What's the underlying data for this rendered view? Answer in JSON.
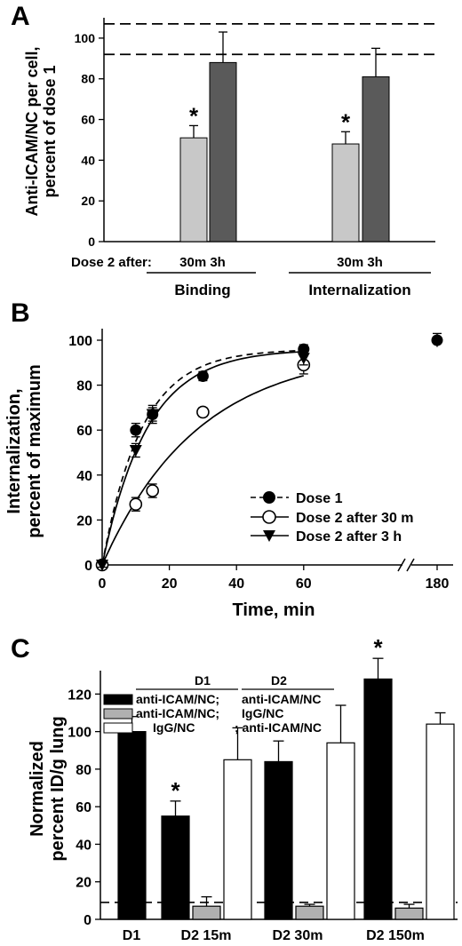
{
  "panels": {
    "A": {
      "label": "A",
      "ylabel_line1": "Anti-ICAM/NC per cell,",
      "ylabel_line2": "percent of dose 1",
      "dose_prefix": "Dose 2 after:",
      "group_ticks": [
        "30m 3h",
        "30m 3h"
      ],
      "groups": [
        "Binding",
        "Internalization"
      ],
      "star": "*"
    },
    "B": {
      "label": "B",
      "ylabel_line1": "Internalization,",
      "ylabel_line2": "percent of maximum",
      "xlabel": "Time, min",
      "legend": [
        "Dose 1",
        "Dose 2 after 30 m",
        "Dose 2 after 3 h"
      ]
    },
    "C": {
      "label": "C",
      "ylabel_line1": "Normalized",
      "ylabel_line2": "percent ID/g lung",
      "legend_head": [
        "D1",
        "D2"
      ],
      "legend_rows": [
        {
          "d1": "anti-ICAM/NC;",
          "d2": "anti-ICAM/NC"
        },
        {
          "d1": "anti-ICAM/NC;",
          "d2": "IgG/NC"
        },
        {
          "d1": "IgG/NC",
          "d2": "; anti-ICAM/NC"
        }
      ],
      "star": "*"
    }
  },
  "chart_data": [
    {
      "type": "bar",
      "panel": "A",
      "ylim": [
        0,
        110
      ],
      "yticks": [
        0,
        20,
        40,
        60,
        80,
        100
      ],
      "reference_lines": [
        107,
        92
      ],
      "groups": [
        "Binding",
        "Internalization"
      ],
      "categories": [
        "30m",
        "3h"
      ],
      "series": [
        {
          "group": "Binding",
          "values": [
            51,
            88
          ],
          "errors": [
            6,
            15
          ],
          "colors": [
            "#c8c8c8",
            "#5a5a5a"
          ]
        },
        {
          "group": "Internalization",
          "values": [
            48,
            81
          ],
          "errors": [
            6,
            14
          ],
          "colors": [
            "#c8c8c8",
            "#5a5a5a"
          ]
        }
      ],
      "significant": [
        [
          true,
          false
        ],
        [
          true,
          false
        ]
      ]
    },
    {
      "type": "scatter",
      "panel": "B",
      "xticks": [
        "0",
        "20",
        "40",
        "60",
        "180"
      ],
      "yticks": [
        0,
        20,
        40,
        60,
        80,
        100
      ],
      "xlim": [
        0,
        70
      ],
      "ylim": [
        0,
        105
      ],
      "axis_break_after": 65,
      "series": [
        {
          "name": "Dose 1",
          "marker": "filled-circle",
          "line": "dashed",
          "points": [
            [
              0,
              0
            ],
            [
              10,
              60
            ],
            [
              15,
              67
            ],
            [
              30,
              84
            ],
            [
              60,
              96
            ]
          ],
          "errors": [
            1,
            3,
            3,
            2,
            2
          ],
          "fit": {
            "ymax": 96,
            "k": 0.085
          }
        },
        {
          "name": "Dose 2 after 30 m",
          "marker": "open-circle",
          "line": "solid",
          "points": [
            [
              0,
              0
            ],
            [
              10,
              27
            ],
            [
              15,
              33
            ],
            [
              30,
              68
            ],
            [
              60,
              89
            ]
          ],
          "errors": [
            1,
            3,
            3,
            2,
            4
          ],
          "fit": {
            "ymax": 96,
            "k": 0.035
          }
        },
        {
          "name": "Dose 2 after 3 h",
          "marker": "filled-triangle",
          "line": "solid",
          "points": [
            [
              0,
              0
            ],
            [
              10,
              51
            ],
            [
              15,
              67
            ],
            [
              60,
              92
            ]
          ],
          "errors": [
            1,
            3,
            4,
            3
          ],
          "fit": {
            "ymax": 96,
            "k": 0.075
          }
        }
      ],
      "extra_points": [
        {
          "x_label": "180",
          "y": 100,
          "error": 3
        }
      ]
    },
    {
      "type": "bar",
      "panel": "C",
      "ylim": [
        0,
        145
      ],
      "yticks": [
        0,
        20,
        40,
        60,
        80,
        100,
        120
      ],
      "reference_line": 9,
      "categories": [
        "D1",
        "D2 15m",
        "D2 30m",
        "D2 150m"
      ],
      "series": [
        {
          "name": "anti-ICAM/NC; anti-ICAM/NC",
          "color": "#000000",
          "values": [
            100,
            55,
            84,
            128
          ],
          "errors": [
            8,
            8,
            11,
            11
          ]
        },
        {
          "name": "anti-ICAM/NC; IgG/NC",
          "color": "#b0b0b0",
          "values": [
            null,
            7,
            7,
            6
          ],
          "errors": [
            null,
            5,
            1,
            2
          ]
        },
        {
          "name": "IgG/NC ; anti-ICAM/NC",
          "color": "#ffffff",
          "values": [
            null,
            85,
            94,
            104
          ],
          "errors": [
            null,
            17,
            20,
            6
          ]
        }
      ],
      "significant_bars": [
        [
          1,
          0
        ],
        [
          3,
          0
        ]
      ]
    }
  ]
}
